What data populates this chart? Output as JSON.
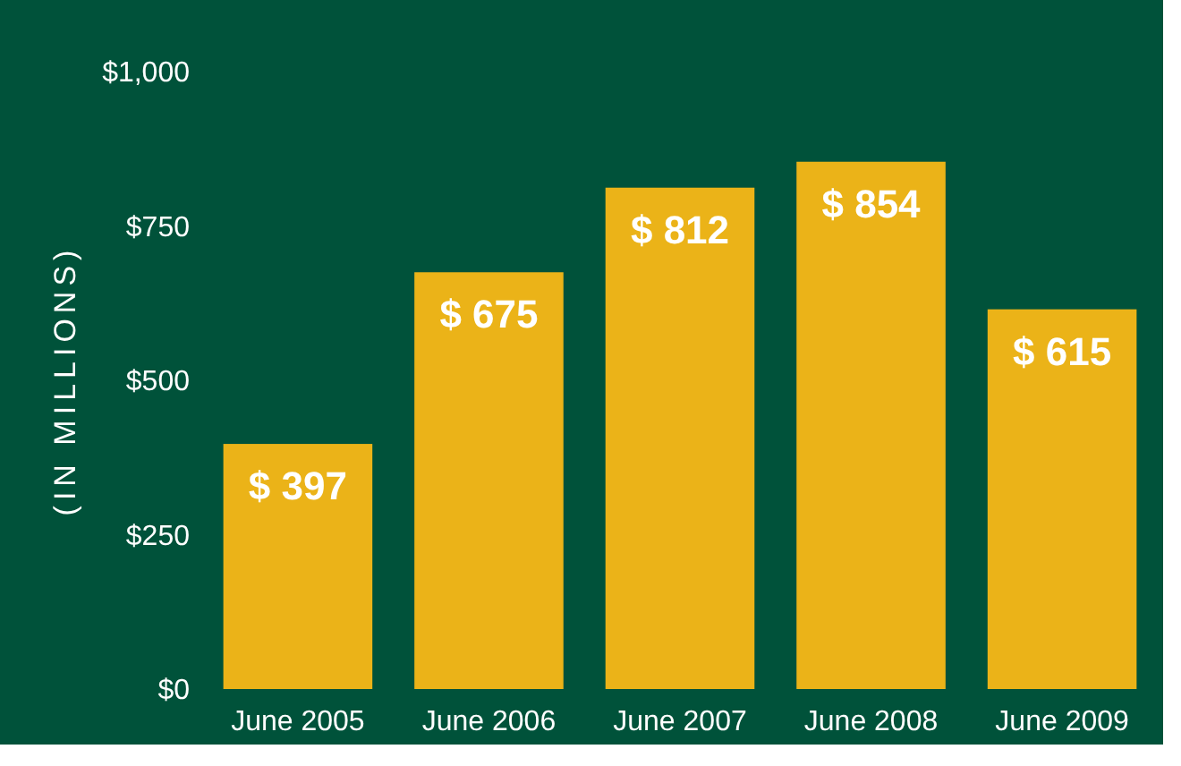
{
  "chart_data": {
    "type": "bar",
    "ylabel": "(IN MILLIONS)",
    "categories": [
      "June 2005",
      "June 2006",
      "June 2007",
      "June 2008",
      "June 2009"
    ],
    "values": [
      397,
      675,
      812,
      854,
      615
    ],
    "value_labels": [
      "$ 397",
      "$ 675",
      "$ 812",
      "$ 854",
      "$ 615"
    ],
    "color": "#ebb318",
    "ylim": [
      0,
      1000
    ],
    "yticks": [
      {
        "value": 0,
        "label": "$0"
      },
      {
        "value": 250,
        "label": "$250"
      },
      {
        "value": 500,
        "label": "$500"
      },
      {
        "value": 750,
        "label": "$750"
      },
      {
        "value": 1000,
        "label": "$1,000"
      }
    ],
    "grid": false
  }
}
